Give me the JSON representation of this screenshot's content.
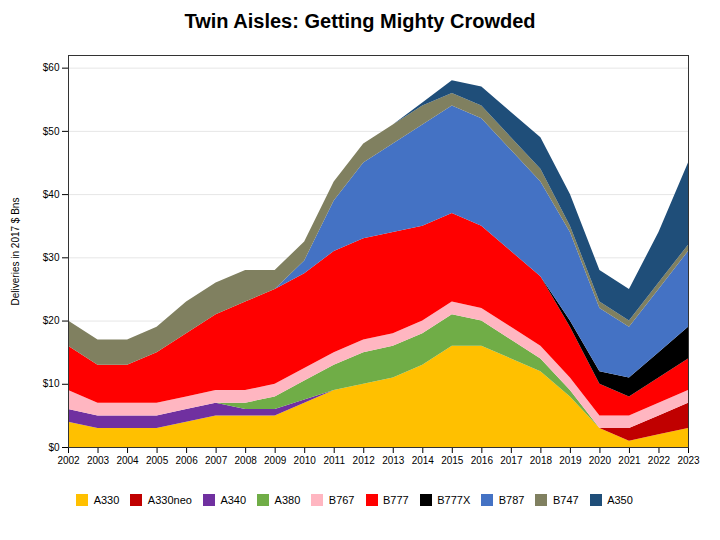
{
  "chart_data": {
    "type": "area",
    "stacked": true,
    "title": "Twin Aisles: Getting Mighty Crowded",
    "y_label": "Deliveries in 2017 $ Bns",
    "x": [
      2002,
      2003,
      2004,
      2005,
      2006,
      2007,
      2008,
      2009,
      2010,
      2011,
      2012,
      2013,
      2014,
      2015,
      2016,
      2017,
      2018,
      2019,
      2020,
      2021,
      2022,
      2023
    ],
    "xlim": [
      2002,
      2023
    ],
    "xticks": [
      2002,
      2003,
      2004,
      2005,
      2006,
      2007,
      2008,
      2009,
      2010,
      2011,
      2012,
      2013,
      2014,
      2015,
      2016,
      2017,
      2018,
      2019,
      2020,
      2021,
      2022,
      2023
    ],
    "ylim": [
      0,
      62
    ],
    "yticks": [
      {
        "value": 0,
        "label": "$0"
      },
      {
        "value": 10,
        "label": "$10"
      },
      {
        "value": 20,
        "label": "$20"
      },
      {
        "value": 30,
        "label": "$30"
      },
      {
        "value": 40,
        "label": "$40"
      },
      {
        "value": 50,
        "label": "$50"
      },
      {
        "value": 60,
        "label": "$60"
      }
    ],
    "grid": true,
    "legend": "bottom",
    "series": [
      {
        "name": "A330",
        "color": "#FFC000",
        "values": [
          4,
          3,
          3,
          3,
          4,
          5,
          5,
          5,
          7,
          9,
          10,
          11,
          13,
          16,
          16,
          14,
          12,
          8,
          3,
          1,
          2,
          3
        ]
      },
      {
        "name": "A330neo",
        "color": "#C00000",
        "values": [
          0,
          0,
          0,
          0,
          0,
          0,
          0,
          0,
          0,
          0,
          0,
          0,
          0,
          0,
          0,
          0,
          0,
          0,
          0,
          2,
          3,
          4
        ]
      },
      {
        "name": "A340",
        "color": "#7030A0",
        "values": [
          2,
          2,
          2,
          2,
          2,
          2,
          1,
          1,
          0.5,
          0,
          0,
          0,
          0,
          0,
          0,
          0,
          0,
          0,
          0,
          0,
          0,
          0
        ]
      },
      {
        "name": "A380",
        "color": "#70AD47",
        "values": [
          0,
          0,
          0,
          0,
          0,
          0,
          1,
          2,
          3,
          4,
          5,
          5,
          5,
          5,
          4,
          3,
          2,
          1,
          0,
          0,
          0,
          0
        ]
      },
      {
        "name": "B767",
        "color": "#FFB6C1",
        "values": [
          3,
          2,
          2,
          2,
          2,
          2,
          2,
          2,
          2,
          2,
          2,
          2,
          2,
          2,
          2,
          2,
          2,
          2,
          2,
          2,
          2,
          2
        ]
      },
      {
        "name": "B777",
        "color": "#FF0000",
        "values": [
          7,
          6,
          6,
          8,
          10,
          12,
          14,
          15,
          15,
          16,
          16,
          16,
          15,
          14,
          13,
          12,
          11,
          8,
          5,
          3,
          4,
          5
        ]
      },
      {
        "name": "B777X",
        "color": "#000000",
        "values": [
          0,
          0,
          0,
          0,
          0,
          0,
          0,
          0,
          0,
          0,
          0,
          0,
          0,
          0,
          0,
          0,
          0,
          1,
          2,
          3,
          4,
          5
        ]
      },
      {
        "name": "B787",
        "color": "#4472C4",
        "values": [
          0,
          0,
          0,
          0,
          0,
          0,
          0,
          0,
          2,
          8,
          12,
          14,
          16,
          17,
          17,
          16,
          15,
          14,
          10,
          8,
          10,
          12
        ]
      },
      {
        "name": "B747",
        "color": "#808060",
        "values": [
          4,
          4,
          4,
          4,
          5,
          5,
          5,
          3,
          3,
          3,
          3,
          3,
          3,
          2,
          2,
          2,
          2,
          1,
          1,
          1,
          1,
          1
        ]
      },
      {
        "name": "A350",
        "color": "#1F4E79",
        "values": [
          0,
          0,
          0,
          0,
          0,
          0,
          0,
          0,
          0,
          0,
          0,
          0,
          0.5,
          2,
          3,
          4,
          5,
          5,
          5,
          5,
          8,
          13
        ]
      }
    ]
  }
}
